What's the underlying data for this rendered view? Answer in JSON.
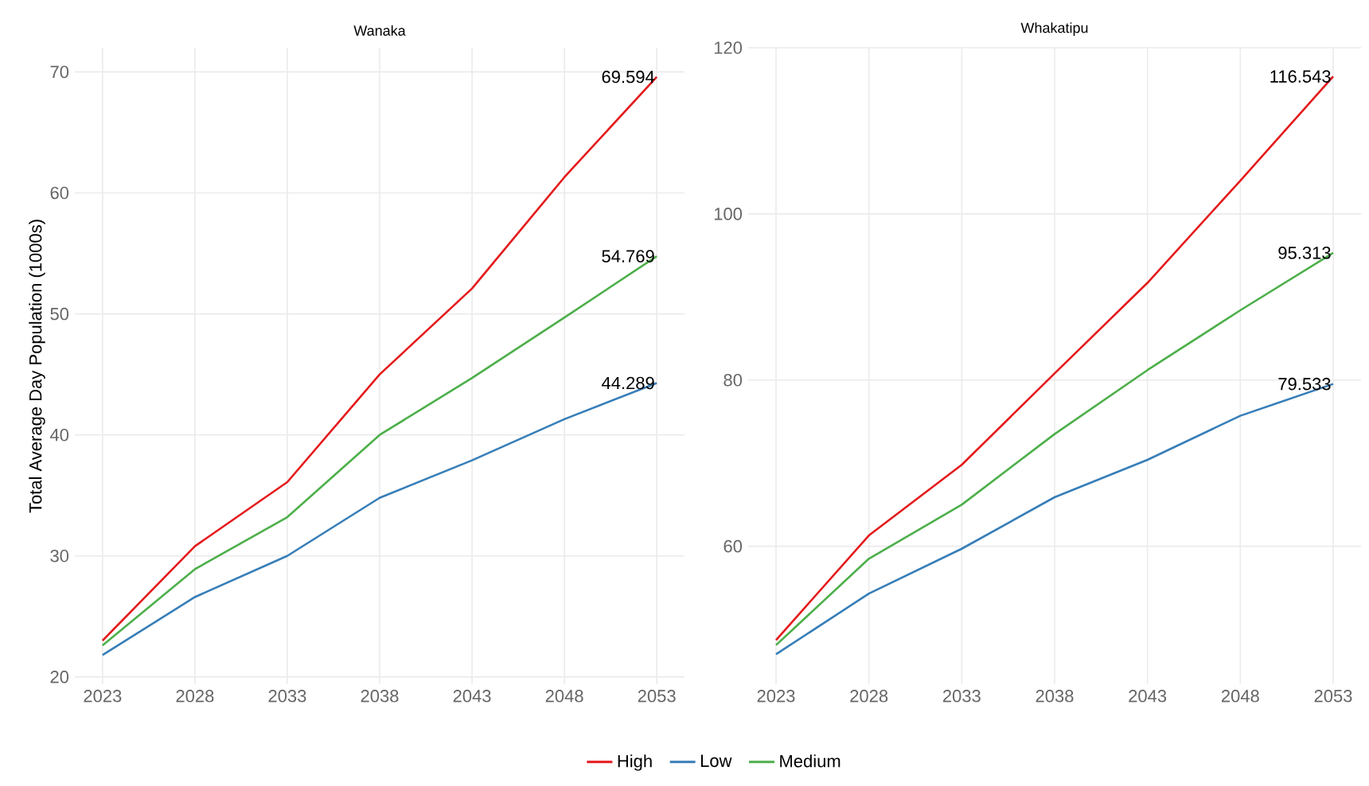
{
  "chart_data": [
    {
      "type": "line",
      "title": "Wanaka",
      "ylabel": "Total Average Day Population (1000s)",
      "x": [
        2023,
        2028,
        2033,
        2038,
        2043,
        2048,
        2053
      ],
      "xlim": [
        2021.5,
        2054.5
      ],
      "xticks": [
        2023,
        2028,
        2033,
        2038,
        2043,
        2048,
        2053
      ],
      "ylim": [
        19.4,
        72.0
      ],
      "yticks": [
        20,
        30,
        40,
        50,
        60,
        70
      ],
      "grid": true,
      "legend": "bottom",
      "series": [
        {
          "name": "High",
          "color": "#e41a1c",
          "values": [
            23.0,
            30.8,
            36.1,
            45.0,
            52.1,
            61.3,
            69.594
          ],
          "value_labels": [
            null,
            null,
            null,
            null,
            null,
            null,
            "69.594"
          ]
        },
        {
          "name": "Low",
          "color": "#377eb8",
          "values": [
            21.8,
            26.6,
            30.0,
            34.8,
            37.9,
            41.3,
            44.289
          ],
          "value_labels": [
            null,
            null,
            null,
            null,
            null,
            null,
            "44.289"
          ]
        },
        {
          "name": "Medium",
          "color": "#4daf4a",
          "values": [
            22.6,
            28.9,
            33.2,
            40.0,
            44.7,
            49.7,
            54.769
          ],
          "value_labels": [
            null,
            null,
            null,
            null,
            null,
            null,
            "54.769"
          ]
        }
      ]
    },
    {
      "type": "line",
      "title": "Whakatipu",
      "x": [
        2023,
        2028,
        2033,
        2038,
        2043,
        2048,
        2053
      ],
      "xlim": [
        2021.5,
        2054.5
      ],
      "xticks": [
        2023,
        2028,
        2033,
        2038,
        2043,
        2048,
        2053
      ],
      "ylim": [
        43.4,
        120.0
      ],
      "yticks": [
        60,
        80,
        100,
        120
      ],
      "grid": true,
      "series": [
        {
          "color": "#e41a1c",
          "values": [
            48.7,
            61.3,
            69.8,
            80.8,
            91.7,
            104.0,
            116.543
          ],
          "value_labels": [
            null,
            null,
            null,
            null,
            null,
            null,
            "116.543"
          ]
        },
        {
          "color": "#377eb8",
          "values": [
            47.0,
            54.3,
            59.7,
            65.9,
            70.4,
            75.7,
            79.533
          ],
          "value_labels": [
            null,
            null,
            null,
            null,
            null,
            null,
            "79.533"
          ]
        },
        {
          "color": "#4daf4a",
          "values": [
            48.1,
            58.5,
            65.0,
            73.5,
            81.2,
            88.4,
            95.313
          ],
          "value_labels": [
            null,
            null,
            null,
            null,
            null,
            null,
            "95.313"
          ]
        }
      ]
    }
  ]
}
